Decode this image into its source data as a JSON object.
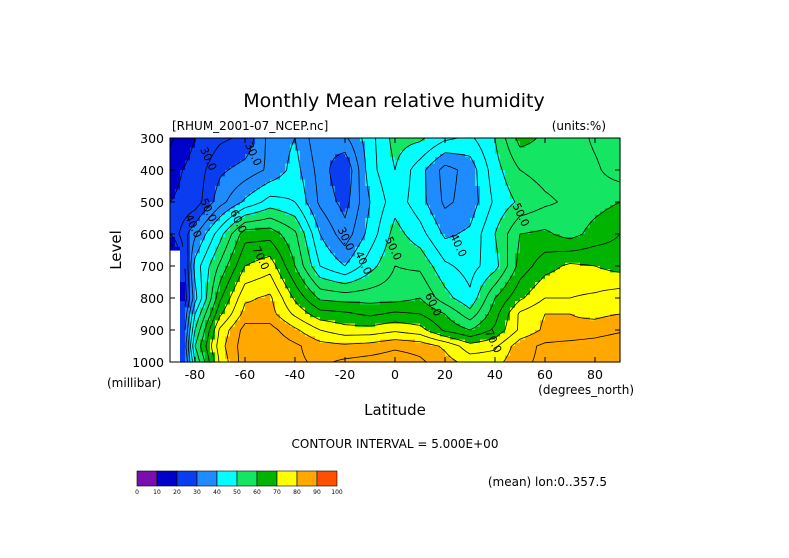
{
  "chart_data": {
    "type": "heatmap",
    "subtype": "filled-contour",
    "title": "Monthly Mean relative humidity",
    "file_label": "[RHUM_2001-07_NCEP.nc]",
    "units_label": "(units:%)",
    "xlabel": "Latitude",
    "x_units": "(degrees_north)",
    "ylabel": "Level",
    "y_units": "(millibar)",
    "x_ticks": [
      -80,
      -60,
      -40,
      -20,
      0,
      20,
      40,
      60,
      80
    ],
    "x_tick_labels": [
      "-80",
      "-60",
      "-40",
      "-20",
      "0",
      "20",
      "40",
      "60",
      "80"
    ],
    "xlim": [
      -90,
      90
    ],
    "y_ticks": [
      300,
      400,
      500,
      600,
      700,
      800,
      900,
      1000
    ],
    "y_tick_labels": [
      "300",
      "400",
      "500",
      "600",
      "700",
      "800",
      "900",
      "1000"
    ],
    "ylim": [
      1000,
      300
    ],
    "contour_interval_label": "CONTOUR INTERVAL = 5.000E+00",
    "mean_label": "(mean) lon:0..357.5",
    "colorbar": {
      "bounds": [
        0,
        10,
        20,
        30,
        40,
        50,
        60,
        70,
        80,
        90,
        100
      ],
      "tick_labels": [
        "0",
        "10",
        "20",
        "30",
        "40",
        "50",
        "60",
        "70",
        "80",
        "90",
        "100"
      ],
      "colors": [
        "#7a0fb0",
        "#0000cd",
        "#0a3cf0",
        "#1e8cff",
        "#00ffff",
        "#14e664",
        "#00b400",
        "#ffff00",
        "#ffa800",
        "#ff5000",
        "#f00000"
      ]
    },
    "contour_labels": [
      {
        "text": "30.0",
        "lat": -76,
        "level": 370
      },
      {
        "text": "30.0",
        "lat": -58,
        "level": 355
      },
      {
        "text": "40.0",
        "lat": -82,
        "level": 580
      },
      {
        "text": "50.0",
        "lat": -76,
        "level": 530
      },
      {
        "text": "60.0",
        "lat": -64,
        "level": 565
      },
      {
        "text": "70.0",
        "lat": -55,
        "level": 680
      },
      {
        "text": "30.0",
        "lat": -21,
        "level": 620
      },
      {
        "text": "40.0",
        "lat": -14,
        "level": 695
      },
      {
        "text": "50.0",
        "lat": -2,
        "level": 650
      },
      {
        "text": "40.0",
        "lat": 24,
        "level": 640
      },
      {
        "text": "60.0",
        "lat": 14,
        "level": 825
      },
      {
        "text": "50.0",
        "lat": 49,
        "level": 545
      },
      {
        "text": "70.0",
        "lat": 38,
        "level": 940
      }
    ],
    "grid": false,
    "latitudes": [
      -90,
      -80,
      -70,
      -60,
      -50,
      -40,
      -30,
      -20,
      -10,
      0,
      10,
      20,
      30,
      40,
      50,
      60,
      70,
      80,
      90
    ],
    "levels": [
      300,
      400,
      500,
      600,
      700,
      800,
      850,
      900,
      950,
      1000
    ],
    "values": [
      [
        14,
        20,
        24,
        26,
        37,
        40,
        31,
        34,
        43,
        52,
        51,
        46,
        44,
        50,
        62,
        59,
        58,
        54,
        51
      ],
      [
        18,
        22,
        29,
        32,
        36,
        42,
        33,
        25,
        43,
        50,
        42,
        33,
        37,
        48,
        55,
        57,
        58,
        56,
        52
      ],
      [
        20,
        22,
        33,
        41,
        47,
        45,
        34,
        28,
        40,
        48,
        42,
        34,
        37,
        46,
        51,
        54,
        56,
        58,
        60
      ],
      [
        20,
        34,
        48,
        63,
        63,
        56,
        40,
        32,
        42,
        52,
        47,
        39,
        41,
        50,
        60,
        61,
        58,
        62,
        65
      ],
      [
        0,
        42,
        56,
        70,
        73,
        60,
        45,
        40,
        48,
        55,
        54,
        46,
        43,
        48,
        62,
        68,
        71,
        70,
        68
      ],
      [
        0,
        38,
        64,
        79,
        81,
        69,
        59,
        58,
        58,
        58,
        60,
        52,
        46,
        60,
        69,
        75,
        75,
        76,
        78
      ],
      [
        0,
        45,
        69,
        82,
        82,
        74,
        67,
        66,
        64,
        66,
        65,
        60,
        52,
        63,
        76,
        80,
        80,
        79,
        80
      ],
      [
        0,
        50,
        76,
        87,
        87,
        81,
        75,
        72,
        72,
        74,
        72,
        64,
        60,
        66,
        76,
        81,
        81,
        82,
        84
      ],
      [
        0,
        55,
        78,
        88,
        89,
        86,
        82,
        81,
        82,
        84,
        83,
        79,
        72,
        74,
        83,
        86,
        87,
        88,
        90
      ],
      [
        0,
        50,
        76,
        88,
        89,
        86,
        84,
        86,
        87,
        88,
        86,
        82,
        78,
        78,
        84,
        86,
        88,
        89,
        90
      ]
    ]
  }
}
